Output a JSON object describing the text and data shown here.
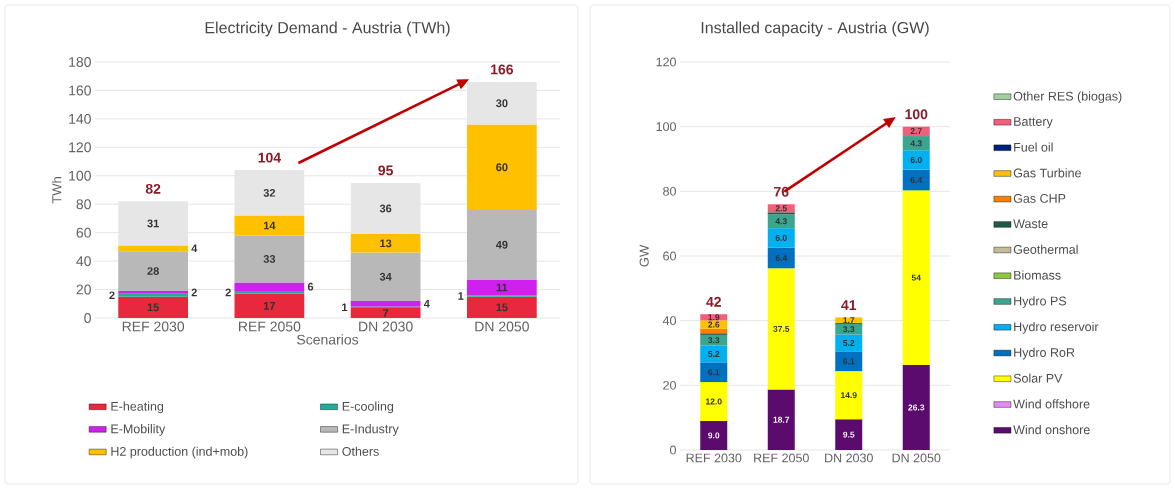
{
  "chart_data": [
    {
      "type": "bar",
      "stacked": true,
      "title": "Electricity Demand - Austria (TWh)",
      "xlabel": "Scenarios",
      "ylabel": "TWh",
      "categories": [
        "REF 2030",
        "REF 2050",
        "DN 2030",
        "DN 2050"
      ],
      "series": [
        {
          "name": "E-heating",
          "color": "#e8283c",
          "values": [
            15,
            17,
            7,
            15
          ]
        },
        {
          "name": "E-cooling",
          "color": "#2aa89a",
          "values": [
            2,
            2,
            1,
            1
          ]
        },
        {
          "name": "E-Mobility",
          "color": "#d020f0",
          "values": [
            2,
            6,
            4,
            11
          ]
        },
        {
          "name": "E-Industry",
          "color": "#b8b8b8",
          "values": [
            28,
            33,
            34,
            49
          ]
        },
        {
          "name": "H2 production (ind+mob)",
          "color": "#ffc000",
          "values": [
            4,
            14,
            13,
            60
          ]
        },
        {
          "name": "Others",
          "color": "#e6e6e6",
          "values": [
            31,
            32,
            36,
            30
          ]
        }
      ],
      "ylim": [
        0,
        180
      ],
      "yticks": [
        0,
        20,
        40,
        60,
        80,
        100,
        120,
        140,
        160,
        180
      ],
      "grid": "y",
      "legend": "bottom",
      "data_labels": true,
      "totals": [
        "82",
        "104",
        "95",
        "166"
      ]
    },
    {
      "type": "bar",
      "stacked": true,
      "title": "Installed capacity - Austria (GW)",
      "ylabel": "GW",
      "categories": [
        "REF 2030",
        "REF 2050",
        "DN 2030",
        "DN 2050"
      ],
      "series": [
        {
          "name": "Wind onshore",
          "color": "#5b0a6e",
          "values": [
            9.0,
            18.7,
            9.5,
            26.3
          ],
          "value_labels": [
            "9.0",
            "18.7",
            "9.5",
            "26.3"
          ]
        },
        {
          "name": "Wind offshore",
          "color": "#e08cf0",
          "values": [
            null,
            null,
            null,
            null
          ],
          "value_labels": [
            null,
            null,
            null,
            null
          ]
        },
        {
          "name": "Solar PV",
          "color": "#ffff00",
          "values": [
            12.0,
            37.5,
            14.9,
            54
          ],
          "value_labels": [
            "12.0",
            "37.5",
            "14.9",
            "54"
          ]
        },
        {
          "name": "Hydro RoR",
          "color": "#0070c0",
          "values": [
            6.1,
            6.4,
            6.1,
            6.4
          ],
          "value_labels": [
            "6.1",
            "6.4",
            "6.1",
            "6.4"
          ]
        },
        {
          "name": "Hydro reservoir",
          "color": "#00b0f0",
          "values": [
            5.2,
            6.0,
            5.2,
            6.0
          ],
          "value_labels": [
            "5.2",
            "6.0",
            "5.2",
            "6.0"
          ]
        },
        {
          "name": "Hydro PS",
          "color": "#3aa68f",
          "values": [
            3.3,
            4.3,
            3.3,
            4.3
          ],
          "value_labels": [
            "3.3",
            "4.3",
            "3.3",
            "4.3"
          ]
        },
        {
          "name": "Biomass",
          "color": "#8dc63f",
          "values": [
            null,
            null,
            null,
            null
          ],
          "value_labels": [
            null,
            null,
            null,
            null
          ]
        },
        {
          "name": "Geothermal",
          "color": "#c4bc96",
          "values": [
            null,
            null,
            null,
            null
          ],
          "value_labels": [
            null,
            null,
            null,
            null
          ]
        },
        {
          "name": "Waste",
          "color": "#1e5c4a",
          "values": [
            0.5,
            0.6,
            0.3,
            0.3
          ],
          "value_labels": [
            null,
            null,
            null,
            null
          ]
        },
        {
          "name": "Gas CHP",
          "color": "#ff7f00",
          "values": [
            1.4,
            null,
            null,
            null
          ],
          "value_labels": [
            null,
            null,
            null,
            null
          ]
        },
        {
          "name": "Gas Turbine",
          "color": "#ffc000",
          "values": [
            2.6,
            null,
            1.7,
            null
          ],
          "value_labels": [
            "2.6",
            null,
            "1.7",
            null
          ]
        },
        {
          "name": "Fuel oil",
          "color": "#002080",
          "values": [
            null,
            null,
            null,
            null
          ],
          "value_labels": [
            null,
            null,
            null,
            null
          ]
        },
        {
          "name": "Battery",
          "color": "#f0607a",
          "values": [
            1.9,
            2.5,
            null,
            2.7
          ],
          "value_labels": [
            "1.9",
            "2.5",
            null,
            "2.7"
          ]
        },
        {
          "name": "Other RES (biogas)",
          "color": "#a0d0a0",
          "values": [
            null,
            null,
            null,
            null
          ],
          "value_labels": [
            null,
            null,
            null,
            null
          ]
        }
      ],
      "ylim": [
        0,
        120
      ],
      "yticks": [
        0,
        20,
        40,
        60,
        80,
        100,
        120
      ],
      "grid": "y",
      "legend": "right",
      "totals": [
        "42",
        "76",
        "41",
        "100"
      ]
    }
  ]
}
